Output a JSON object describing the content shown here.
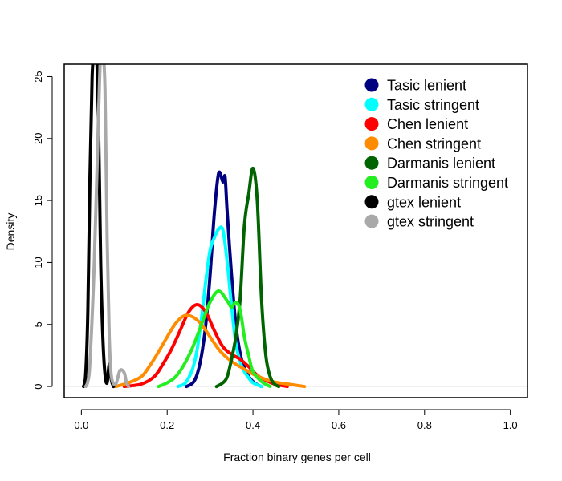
{
  "chart_data": {
    "type": "line",
    "title": "",
    "xlabel": "Fraction binary genes per cell",
    "ylabel": "Density",
    "xlim": [
      -0.04,
      1.04
    ],
    "ylim": [
      -0.9,
      26
    ],
    "x_ticks": [
      {
        "value": 0.0,
        "label": "0.0"
      },
      {
        "value": 0.2,
        "label": "0.2"
      },
      {
        "value": 0.4,
        "label": "0.4"
      },
      {
        "value": 0.6,
        "label": "0.6"
      },
      {
        "value": 0.8,
        "label": "0.8"
      },
      {
        "value": 1.0,
        "label": "1.0"
      }
    ],
    "y_ticks": [
      {
        "value": 0,
        "label": "0"
      },
      {
        "value": 5,
        "label": "5"
      },
      {
        "value": 10,
        "label": "10"
      },
      {
        "value": 15,
        "label": "15"
      },
      {
        "value": 20,
        "label": "20"
      },
      {
        "value": 25,
        "label": "25"
      }
    ],
    "baseline": 0,
    "legend_position": "top-right",
    "series": [
      {
        "name": "Tasic lenient",
        "color": "#000080",
        "points": [
          [
            0.245,
            0
          ],
          [
            0.26,
            0.3
          ],
          [
            0.27,
            1
          ],
          [
            0.28,
            2.5
          ],
          [
            0.29,
            5
          ],
          [
            0.3,
            9
          ],
          [
            0.31,
            14
          ],
          [
            0.32,
            17.2
          ],
          [
            0.33,
            16.5
          ],
          [
            0.335,
            16.9
          ],
          [
            0.34,
            14
          ],
          [
            0.35,
            9
          ],
          [
            0.36,
            5
          ],
          [
            0.37,
            2.7
          ],
          [
            0.38,
            1.5
          ],
          [
            0.39,
            0.8
          ],
          [
            0.4,
            0.4
          ],
          [
            0.41,
            0.15
          ],
          [
            0.42,
            0
          ]
        ]
      },
      {
        "name": "Tasic stringent",
        "color": "#00FFFF",
        "points": [
          [
            0.225,
            0
          ],
          [
            0.24,
            0.2
          ],
          [
            0.25,
            0.7
          ],
          [
            0.26,
            1.5
          ],
          [
            0.27,
            3
          ],
          [
            0.28,
            5.5
          ],
          [
            0.29,
            8.5
          ],
          [
            0.3,
            11
          ],
          [
            0.31,
            12
          ],
          [
            0.32,
            12.7
          ],
          [
            0.33,
            12.6
          ],
          [
            0.34,
            10
          ],
          [
            0.35,
            6.5
          ],
          [
            0.36,
            3.5
          ],
          [
            0.37,
            2
          ],
          [
            0.38,
            1.2
          ],
          [
            0.39,
            0.7
          ],
          [
            0.4,
            0.3
          ],
          [
            0.42,
            0
          ]
        ]
      },
      {
        "name": "Chen lenient",
        "color": "#FF0000",
        "points": [
          [
            0.1,
            0
          ],
          [
            0.14,
            0.2
          ],
          [
            0.17,
            0.8
          ],
          [
            0.19,
            1.8
          ],
          [
            0.21,
            3
          ],
          [
            0.23,
            4.5
          ],
          [
            0.25,
            6
          ],
          [
            0.27,
            6.6
          ],
          [
            0.29,
            6
          ],
          [
            0.31,
            4.5
          ],
          [
            0.33,
            3.2
          ],
          [
            0.35,
            2.6
          ],
          [
            0.37,
            2.2
          ],
          [
            0.39,
            1.6
          ],
          [
            0.41,
            0.9
          ],
          [
            0.43,
            0.5
          ],
          [
            0.45,
            0.2
          ],
          [
            0.48,
            0
          ]
        ]
      },
      {
        "name": "Chen stringent",
        "color": "#FF8C00",
        "points": [
          [
            0.08,
            0
          ],
          [
            0.11,
            0.3
          ],
          [
            0.14,
            0.8
          ],
          [
            0.16,
            1.7
          ],
          [
            0.18,
            2.8
          ],
          [
            0.2,
            4
          ],
          [
            0.22,
            5.1
          ],
          [
            0.24,
            5.7
          ],
          [
            0.26,
            5.6
          ],
          [
            0.28,
            5
          ],
          [
            0.3,
            4
          ],
          [
            0.32,
            3
          ],
          [
            0.34,
            2.3
          ],
          [
            0.36,
            1.8
          ],
          [
            0.38,
            1.4
          ],
          [
            0.4,
            1
          ],
          [
            0.42,
            0.7
          ],
          [
            0.44,
            0.45
          ],
          [
            0.46,
            0.3
          ],
          [
            0.49,
            0.15
          ],
          [
            0.52,
            0
          ]
        ]
      },
      {
        "name": "Darmanis lenient",
        "color": "#006400",
        "points": [
          [
            0.315,
            0
          ],
          [
            0.33,
            0.3
          ],
          [
            0.34,
            0.8
          ],
          [
            0.35,
            2.2
          ],
          [
            0.36,
            4
          ],
          [
            0.37,
            7
          ],
          [
            0.38,
            13
          ],
          [
            0.39,
            15.5
          ],
          [
            0.4,
            17.6
          ],
          [
            0.41,
            15
          ],
          [
            0.42,
            7
          ],
          [
            0.43,
            2.5
          ],
          [
            0.44,
            0.8
          ],
          [
            0.45,
            0.2
          ],
          [
            0.46,
            0
          ]
        ]
      },
      {
        "name": "Darmanis stringent",
        "color": "#22EE22",
        "points": [
          [
            0.18,
            0
          ],
          [
            0.2,
            0.3
          ],
          [
            0.22,
            0.8
          ],
          [
            0.24,
            1.8
          ],
          [
            0.26,
            3.2
          ],
          [
            0.28,
            5
          ],
          [
            0.3,
            6.8
          ],
          [
            0.32,
            7.7
          ],
          [
            0.34,
            6.9
          ],
          [
            0.35,
            6.4
          ],
          [
            0.36,
            6.8
          ],
          [
            0.37,
            6.2
          ],
          [
            0.38,
            4
          ],
          [
            0.39,
            2.5
          ],
          [
            0.4,
            1.2
          ],
          [
            0.42,
            0.4
          ],
          [
            0.44,
            0
          ]
        ]
      },
      {
        "name": "gtex lenient",
        "color": "#000000",
        "points": [
          [
            0.005,
            0
          ],
          [
            0.01,
            1
          ],
          [
            0.015,
            6
          ],
          [
            0.02,
            17
          ],
          [
            0.025,
            25
          ],
          [
            0.03,
            27
          ],
          [
            0.035,
            27
          ],
          [
            0.04,
            21
          ],
          [
            0.045,
            10
          ],
          [
            0.05,
            4
          ],
          [
            0.055,
            1
          ],
          [
            0.06,
            0.3
          ],
          [
            0.065,
            1.8
          ],
          [
            0.07,
            0.5
          ],
          [
            0.075,
            0
          ]
        ]
      },
      {
        "name": "gtex stringent",
        "color": "#A9A9A9",
        "points": [
          [
            0.01,
            0
          ],
          [
            0.015,
            0.4
          ],
          [
            0.02,
            2
          ],
          [
            0.03,
            10
          ],
          [
            0.04,
            22
          ],
          [
            0.045,
            27
          ],
          [
            0.05,
            27
          ],
          [
            0.055,
            24
          ],
          [
            0.06,
            12
          ],
          [
            0.065,
            4
          ],
          [
            0.07,
            0.8
          ],
          [
            0.08,
            0.2
          ],
          [
            0.09,
            1.3
          ],
          [
            0.1,
            1.1
          ],
          [
            0.105,
            0.3
          ],
          [
            0.11,
            0
          ]
        ]
      }
    ]
  }
}
